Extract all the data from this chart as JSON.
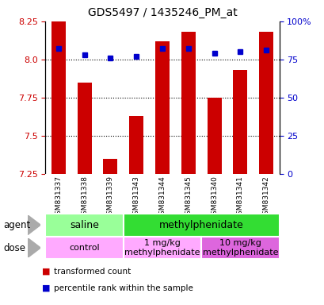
{
  "title": "GDS5497 / 1435246_PM_at",
  "samples": [
    "GSM831337",
    "GSM831338",
    "GSM831339",
    "GSM831343",
    "GSM831344",
    "GSM831345",
    "GSM831340",
    "GSM831341",
    "GSM831342"
  ],
  "bar_values": [
    8.25,
    7.85,
    7.35,
    7.63,
    8.12,
    8.18,
    7.75,
    7.93,
    8.18
  ],
  "dot_values": [
    82,
    78,
    76,
    77,
    82,
    82,
    79,
    80,
    81
  ],
  "ylim": [
    7.25,
    8.25
  ],
  "yticks": [
    7.25,
    7.5,
    7.75,
    8.0,
    8.25
  ],
  "right_yticks": [
    0,
    25,
    50,
    75,
    100
  ],
  "right_ytick_labels": [
    "0",
    "25",
    "50",
    "75",
    "100%"
  ],
  "bar_color": "#cc0000",
  "dot_color": "#0000cc",
  "bar_bottom": 7.25,
  "agent_groups": [
    {
      "label": "saline",
      "start": 0,
      "end": 3,
      "color": "#99ff99"
    },
    {
      "label": "methylphenidate",
      "start": 3,
      "end": 9,
      "color": "#33dd33"
    }
  ],
  "dose_groups": [
    {
      "label": "control",
      "start": 0,
      "end": 3,
      "color": "#ffaaff"
    },
    {
      "label": "1 mg/kg\nmethylphenidate",
      "start": 3,
      "end": 6,
      "color": "#ffaaff"
    },
    {
      "label": "10 mg/kg\nmethylphenidate",
      "start": 6,
      "end": 9,
      "color": "#dd66dd"
    }
  ],
  "legend_items": [
    {
      "color": "#cc0000",
      "label": "transformed count"
    },
    {
      "color": "#0000cc",
      "label": "percentile rank within the sample"
    }
  ],
  "tick_label_color": "#cc0000",
  "right_tick_color": "#0000cc",
  "bg_color": "#ffffff",
  "plot_bg_color": "#ffffff",
  "tick_area_color": "#cccccc",
  "grid_yticks": [
    7.5,
    7.75,
    8.0
  ]
}
